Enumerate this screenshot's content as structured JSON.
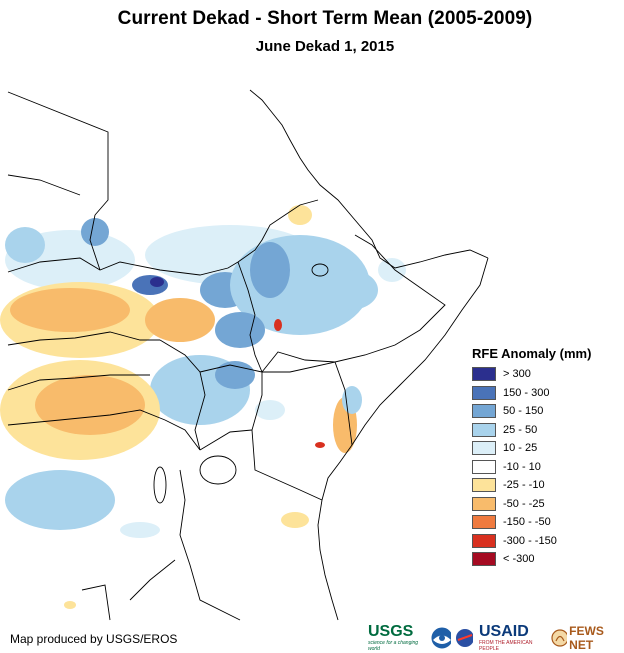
{
  "title": "Current Dekad - Short Term Mean (2005-2009)",
  "subtitle": "June Dekad 1, 2015",
  "legend": {
    "title": "RFE Anomaly (mm)",
    "items": [
      {
        "label": "> 300",
        "color": "#2b2f8e"
      },
      {
        "label": "150 - 300",
        "color": "#4a73b8"
      },
      {
        "label": "50 - 150",
        "color": "#74a6d4"
      },
      {
        "label": "25 - 50",
        "color": "#a9d3ec"
      },
      {
        "label": "10 - 25",
        "color": "#dceff8"
      },
      {
        "label": "-10 - 10",
        "color": "#ffffff"
      },
      {
        "label": "-25 - -10",
        "color": "#fde39a"
      },
      {
        "label": "-50 - -25",
        "color": "#f8bb6b"
      },
      {
        "label": "-150 - -50",
        "color": "#ef7a3f"
      },
      {
        "label": "-300 - -150",
        "color": "#d8301f"
      },
      {
        "label": "< -300",
        "color": "#a50b22"
      }
    ]
  },
  "credit": "Map produced by USGS/EROS",
  "logos": {
    "usgs": "USGS",
    "usgs_tagline": "science for a changing world",
    "usaid": "USAID",
    "usaid_tagline": "FROM THE AMERICAN PEOPLE",
    "fewsnet": "FEWS NET"
  }
}
